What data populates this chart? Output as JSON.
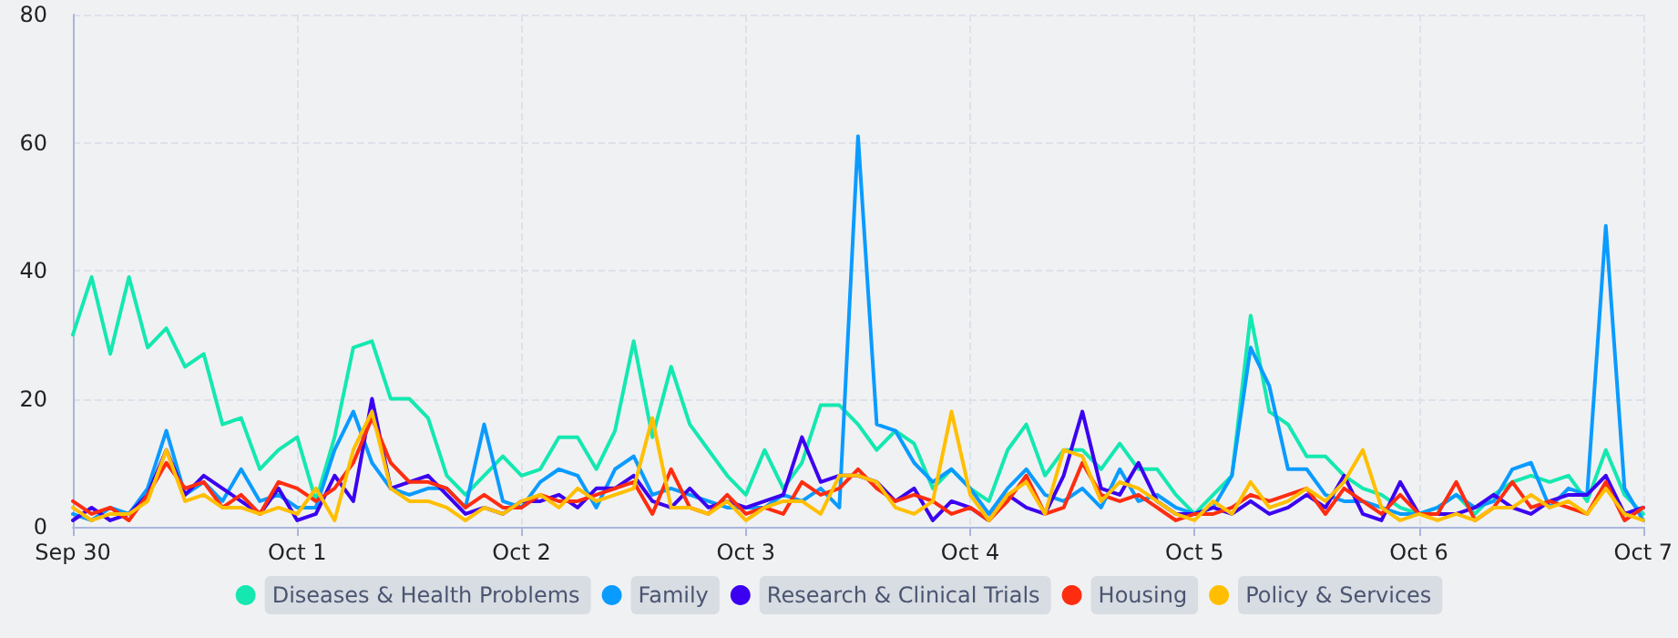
{
  "chart_data": {
    "type": "line",
    "categories": [
      "Sep 30",
      null,
      null,
      null,
      null,
      null,
      null,
      null,
      null,
      null,
      null,
      null,
      "Oct 1",
      null,
      null,
      null,
      null,
      null,
      null,
      null,
      null,
      null,
      null,
      null,
      "Oct 2",
      null,
      null,
      null,
      null,
      null,
      null,
      null,
      null,
      null,
      null,
      null,
      "Oct 3",
      null,
      null,
      null,
      null,
      null,
      null,
      null,
      null,
      null,
      null,
      null,
      "Oct 4",
      null,
      null,
      null,
      null,
      null,
      null,
      null,
      null,
      null,
      null,
      null,
      "Oct 5",
      null,
      null,
      null,
      null,
      null,
      null,
      null,
      null,
      null,
      null,
      null,
      "Oct 6",
      null,
      null,
      null,
      null,
      null,
      null,
      null,
      null,
      null,
      null,
      null,
      "Oct 7"
    ],
    "ylim": [
      0,
      80
    ],
    "yticks": [
      0,
      20,
      40,
      60,
      80
    ],
    "grid": true,
    "legend": "bottom",
    "marker": "none",
    "series": [
      {
        "name": "Diseases & Health Problems",
        "color": "#14e8b0",
        "values": [
          30,
          39,
          27,
          39,
          28,
          31,
          25,
          27,
          16,
          17,
          9,
          12,
          14,
          4,
          14,
          28,
          29,
          20,
          20,
          17,
          8,
          5,
          8,
          11,
          8,
          9,
          14,
          14,
          9,
          15,
          29,
          14,
          25,
          16,
          12,
          8,
          5,
          12,
          6,
          10,
          19,
          19,
          16,
          12,
          15,
          13,
          6,
          9,
          6,
          4,
          12,
          16,
          8,
          12,
          12,
          9,
          13,
          9,
          9,
          5,
          2,
          5,
          8,
          33,
          18,
          16,
          11,
          11,
          8,
          6,
          5,
          3,
          2,
          3,
          5,
          2,
          5,
          7,
          8,
          7,
          8,
          4,
          12,
          5,
          2
        ]
      },
      {
        "name": "Family",
        "color": "#0a9bff",
        "values": [
          2,
          1,
          3,
          2,
          6,
          15,
          5,
          7,
          4,
          9,
          4,
          5,
          3,
          3,
          12,
          18,
          10,
          6,
          5,
          6,
          6,
          3,
          16,
          4,
          3,
          7,
          9,
          8,
          3,
          9,
          11,
          5,
          6,
          5,
          4,
          3,
          3,
          3,
          5,
          4,
          6,
          3,
          61,
          16,
          15,
          10,
          7,
          9,
          6,
          2,
          6,
          9,
          5,
          4,
          6,
          3,
          9,
          4,
          5,
          3,
          2,
          3,
          8,
          28,
          22,
          9,
          9,
          5,
          4,
          4,
          3,
          2,
          2,
          3,
          5,
          3,
          4,
          9,
          10,
          3,
          6,
          5,
          47,
          6,
          1
        ]
      },
      {
        "name": "Research & Clinical Trials",
        "color": "#3b00f0",
        "values": [
          1,
          3,
          1,
          2,
          5,
          12,
          5,
          8,
          6,
          4,
          2,
          6,
          1,
          2,
          8,
          4,
          20,
          6,
          7,
          8,
          5,
          2,
          3,
          2,
          4,
          4,
          5,
          3,
          6,
          6,
          8,
          4,
          3,
          6,
          3,
          4,
          3,
          4,
          5,
          14,
          7,
          8,
          8,
          7,
          4,
          6,
          1,
          4,
          3,
          1,
          5,
          3,
          2,
          8,
          18,
          6,
          5,
          10,
          4,
          2,
          2,
          3,
          2,
          4,
          2,
          3,
          5,
          3,
          8,
          2,
          1,
          7,
          2,
          2,
          2,
          3,
          5,
          3,
          2,
          4,
          5,
          5,
          8,
          2,
          3
        ]
      },
      {
        "name": "Housing",
        "color": "#ff2d10",
        "values": [
          4,
          2,
          3,
          1,
          5,
          10,
          6,
          7,
          3,
          5,
          2,
          7,
          6,
          4,
          6,
          10,
          17,
          10,
          7,
          7,
          6,
          3,
          5,
          3,
          3,
          5,
          4,
          4,
          5,
          6,
          7,
          2,
          9,
          3,
          2,
          5,
          2,
          3,
          2,
          7,
          5,
          6,
          9,
          6,
          4,
          5,
          4,
          2,
          3,
          1,
          4,
          8,
          2,
          3,
          10,
          5,
          4,
          5,
          3,
          1,
          2,
          2,
          3,
          5,
          4,
          5,
          6,
          2,
          6,
          4,
          2,
          5,
          2,
          2,
          7,
          1,
          3,
          7,
          3,
          4,
          3,
          2,
          7,
          1,
          3
        ]
      },
      {
        "name": "Policy & Services",
        "color": "#ffbf00",
        "values": [
          3,
          1,
          2,
          2,
          4,
          12,
          4,
          5,
          3,
          3,
          2,
          3,
          2,
          6,
          1,
          12,
          18,
          6,
          4,
          4,
          3,
          1,
          3,
          2,
          4,
          5,
          3,
          6,
          4,
          5,
          6,
          17,
          3,
          3,
          2,
          4,
          1,
          3,
          4,
          4,
          2,
          8,
          8,
          7,
          3,
          2,
          4,
          18,
          5,
          1,
          5,
          7,
          2,
          12,
          11,
          4,
          7,
          6,
          4,
          2,
          1,
          4,
          2,
          7,
          3,
          4,
          6,
          4,
          7,
          12,
          3,
          1,
          2,
          1,
          2,
          1,
          3,
          3,
          5,
          3,
          4,
          2,
          6,
          2,
          1
        ]
      }
    ]
  }
}
